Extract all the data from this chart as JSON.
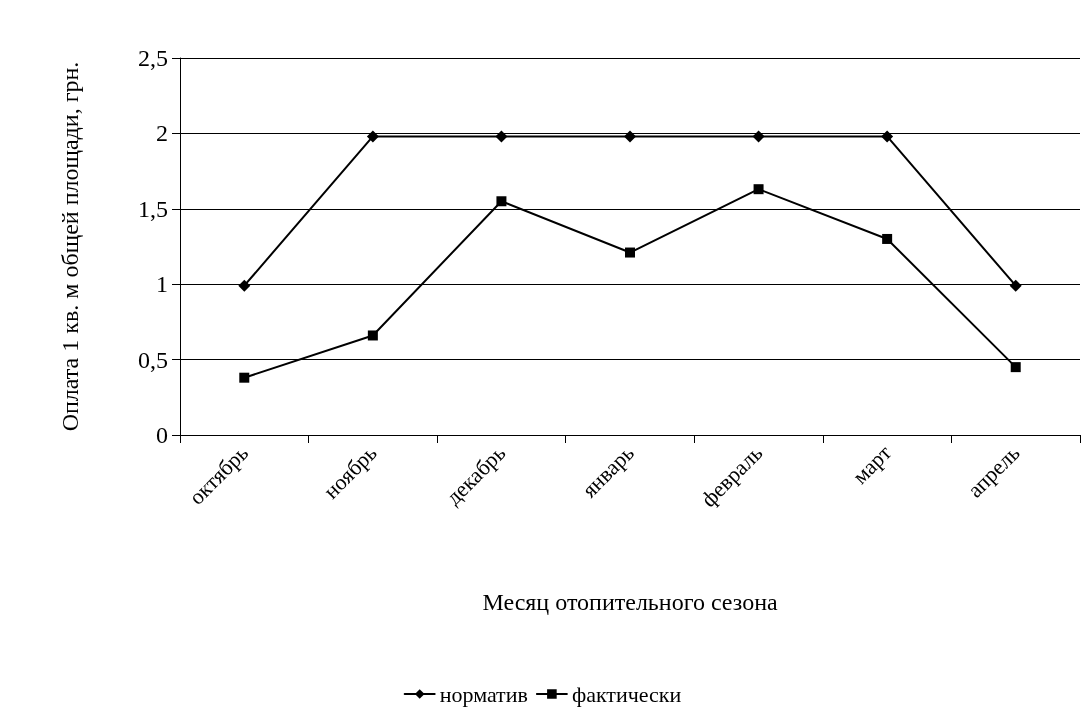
{
  "chart_data": {
    "type": "line",
    "xlabel": "Месяц отопительного сезона",
    "ylabel": "Оплата 1 кв. м общей площади, грн.",
    "categories": [
      "октябрь",
      "ноябрь",
      "декабрь",
      "январь",
      "февраль",
      "март",
      "апрель"
    ],
    "series": [
      {
        "name": "норматив",
        "color": "#000000",
        "marker": "diamond",
        "values": [
          0.99,
          1.98,
          1.98,
          1.98,
          1.98,
          1.98,
          0.99
        ]
      },
      {
        "name": "фактически",
        "color": "#000000",
        "marker": "square",
        "values": [
          0.38,
          0.66,
          1.55,
          1.21,
          1.63,
          1.3,
          0.45
        ]
      }
    ],
    "ylim": [
      0,
      2.5
    ],
    "yticks": [
      {
        "value": 0,
        "label": "0"
      },
      {
        "value": 0.5,
        "label": "0,5"
      },
      {
        "value": 1,
        "label": "1"
      },
      {
        "value": 1.5,
        "label": "1,5"
      },
      {
        "value": 2,
        "label": "2"
      },
      {
        "value": 2.5,
        "label": "2,5"
      }
    ],
    "grid": "y",
    "legend": "bottom",
    "line_style": "solid"
  }
}
